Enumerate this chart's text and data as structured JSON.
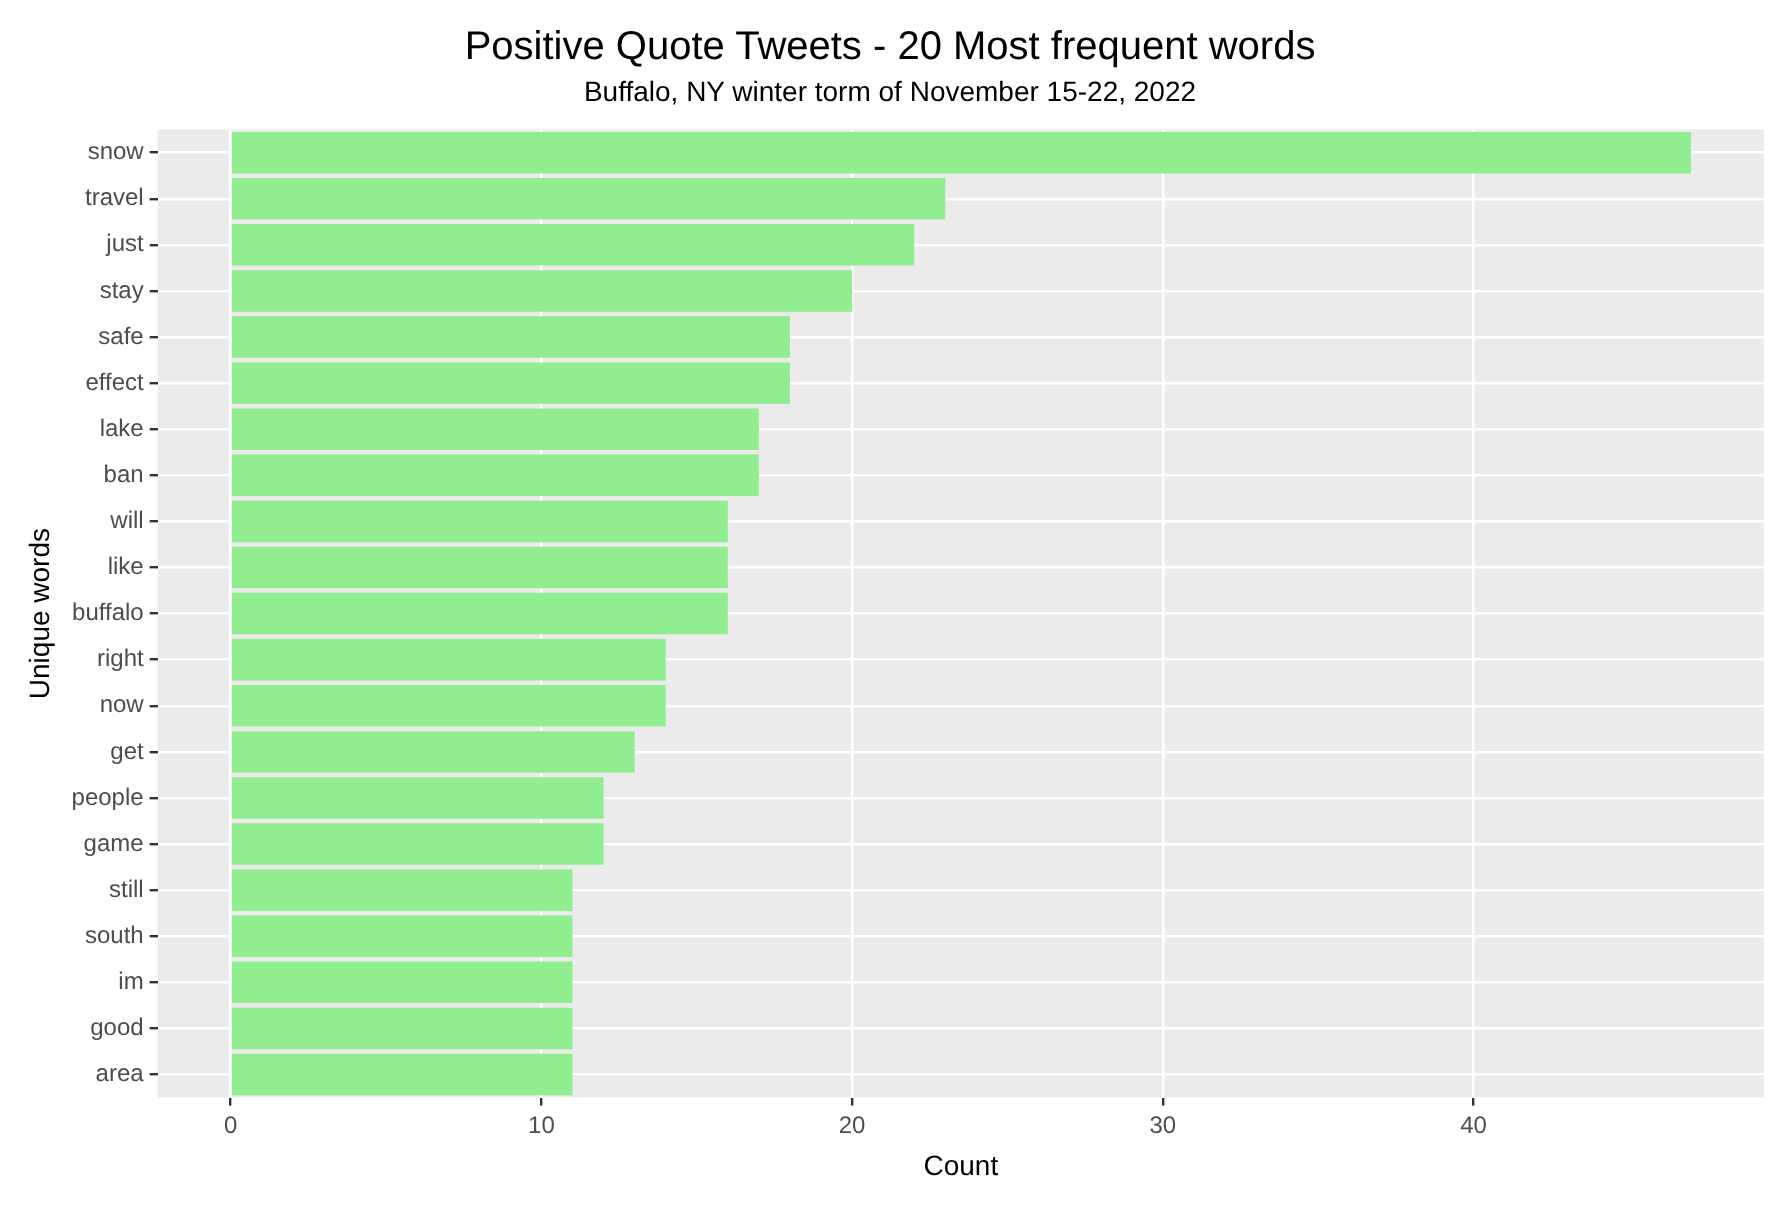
{
  "chart_data": {
    "type": "bar",
    "orientation": "horizontal",
    "title": "Positive Quote Tweets - 20 Most frequent words",
    "subtitle": "Buffalo, NY winter torm of November 15-22, 2022",
    "xlabel": "Count",
    "ylabel": "Unique words",
    "categories": [
      "snow",
      "travel",
      "just",
      "stay",
      "safe",
      "effect",
      "lake",
      "ban",
      "will",
      "like",
      "buffalo",
      "right",
      "now",
      "get",
      "people",
      "game",
      "still",
      "south",
      "im",
      "good",
      "area"
    ],
    "values": [
      47,
      23,
      22,
      20,
      18,
      18,
      17,
      17,
      16,
      16,
      16,
      14,
      14,
      13,
      12,
      12,
      11,
      11,
      11,
      11,
      11
    ],
    "color": "#90ee90",
    "xlim": [
      -2.35,
      49.35
    ],
    "xticks": [
      0,
      10,
      20,
      30,
      40
    ],
    "grid": true
  }
}
